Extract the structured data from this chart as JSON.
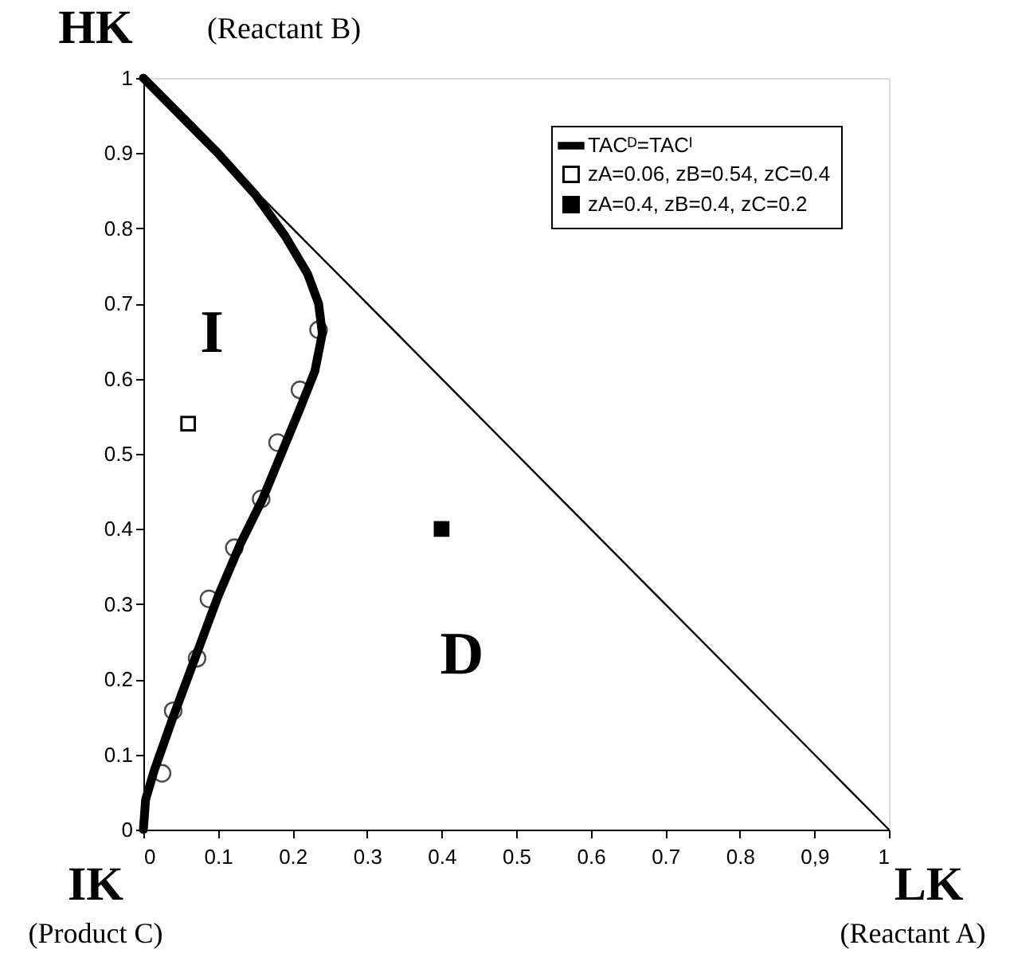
{
  "chart_data": {
    "type": "line",
    "xlim": [
      0,
      1
    ],
    "ylim": [
      0,
      1
    ],
    "xticks": [
      0,
      0.1,
      0.2,
      0.3,
      0.4,
      0.5,
      0.6,
      0.7,
      0.8,
      {
        "value": 0.9,
        "label": "0,9"
      },
      1
    ],
    "yticks": [
      0,
      0.1,
      0.2,
      0.3,
      0.4,
      0.5,
      0.6,
      0.7,
      0.8,
      0.9,
      1
    ],
    "grid": false,
    "legend": "top right",
    "series": [
      {
        "name": "TACᴰ=TACᴵ",
        "color": "#000000",
        "x": [
          0,
          0.05,
          0.1,
          0.15,
          0.19,
          0.22,
          0.235,
          0.24,
          0.23,
          0.21,
          0.185,
          0.16,
          0.13,
          0.1,
          0.07,
          0.04,
          0.015,
          0.003,
          0
        ],
        "values": [
          1,
          0.95,
          0.9,
          0.845,
          0.79,
          0.74,
          0.7,
          0.66,
          0.61,
          0.56,
          0.5,
          0.44,
          0.38,
          0.31,
          0.23,
          0.15,
          0.08,
          0.04,
          0
        ]
      },
      {
        "type": "line",
        "color": "#000000",
        "x": [
          0,
          1
        ],
        "values": [
          1,
          0
        ]
      },
      {
        "type": "scatter",
        "marker": "circle",
        "color": "#000000",
        "x": [
          0.235,
          0.21,
          0.18,
          0.158,
          0.122,
          0.088,
          0.072,
          0.04,
          0.025
        ],
        "values": [
          0.665,
          0.585,
          0.515,
          0.44,
          0.375,
          0.307,
          0.228,
          0.158,
          0.075
        ]
      },
      {
        "name": "zA=0.06, zB=0.54, zC=0.4",
        "type": "scatter",
        "marker": "square",
        "color": "#000000",
        "x": [
          0.06
        ],
        "values": [
          0.54
        ]
      },
      {
        "name": "zA=0.4,   zB=0.4,   zC=0.2",
        "type": "scatter",
        "marker": "square",
        "color": "#000000",
        "x": [
          0.4
        ],
        "values": [
          0.4
        ]
      }
    ],
    "annotations": [
      "HK",
      "(Reactant B)",
      "IK",
      "(Product C)",
      "LK",
      "(Reactant A)",
      "I",
      "D"
    ]
  }
}
